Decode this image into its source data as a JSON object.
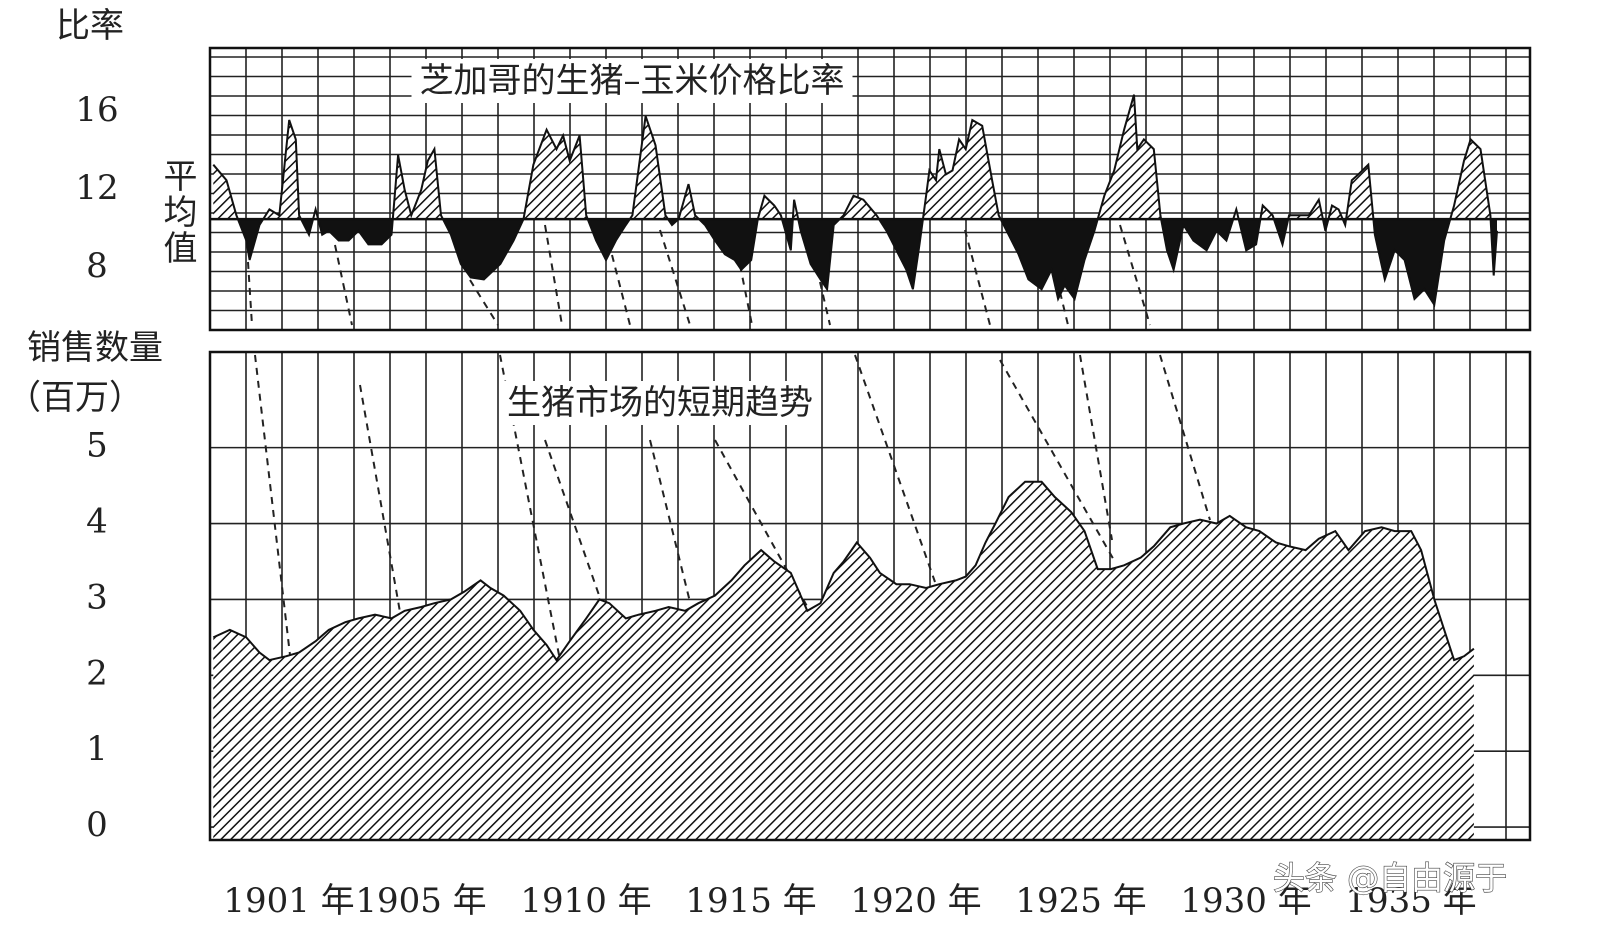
{
  "chart_data": [
    {
      "type": "area",
      "title": "芝加哥的生猪–玉米价格比率",
      "y_label": "比率",
      "baseline": 10.5,
      "baseline_label": "平均值",
      "x": [
        1898.1,
        1898.5,
        1898.8,
        1899.1,
        1899.2,
        1899.5,
        1899.8,
        1900.1,
        1900.4,
        1900.6,
        1900.7,
        1901.0,
        1901.2,
        1901.4,
        1901.6,
        1901.9,
        1902.2,
        1902.5,
        1902.8,
        1903.2,
        1903.5,
        1903.7,
        1903.9,
        1904.1,
        1904.4,
        1904.6,
        1904.8,
        1905.0,
        1905.3,
        1905.6,
        1905.9,
        1906.3,
        1906.8,
        1907.2,
        1907.5,
        1907.8,
        1908.2,
        1908.5,
        1908.7,
        1908.9,
        1909.2,
        1909.4,
        1909.7,
        1910.0,
        1910.3,
        1910.6,
        1910.8,
        1911.2,
        1911.5,
        1911.8,
        1912.0,
        1912.2,
        1912.5,
        1912.7,
        1913.0,
        1913.3,
        1913.6,
        1913.9,
        1914.1,
        1914.4,
        1914.6,
        1914.8,
        1915.1,
        1915.3,
        1915.6,
        1915.7,
        1915.9,
        1916.2,
        1916.5,
        1916.7,
        1916.9,
        1917.2,
        1917.5,
        1917.8,
        1918.2,
        1918.5,
        1918.8,
        1919.1,
        1919.3,
        1919.5,
        1919.7,
        1919.8,
        1920.0,
        1920.1,
        1920.3,
        1920.5,
        1920.7,
        1920.9,
        1921.1,
        1921.4,
        1921.7,
        1921.9,
        1922.2,
        1922.5,
        1922.8,
        1923.2,
        1923.5,
        1923.7,
        1923.9,
        1924.2,
        1924.5,
        1924.8,
        1925.1,
        1925.4,
        1925.7,
        1926.0,
        1926.1,
        1926.3,
        1926.6,
        1926.8,
        1927.0,
        1927.2,
        1927.5,
        1927.8,
        1928.2,
        1928.5,
        1928.8,
        1929.1,
        1929.4,
        1929.7,
        1929.9,
        1930.2,
        1930.5,
        1930.7,
        1931.0,
        1931.3,
        1931.6,
        1931.8,
        1932.0,
        1932.2,
        1932.4,
        1932.6,
        1932.8,
        1933.1,
        1933.3,
        1933.6,
        1933.9,
        1934.2,
        1934.5,
        1934.8,
        1935.1,
        1935.4,
        1935.7,
        1936.0,
        1936.2,
        1936.5,
        1936.8,
        1936.9,
        1937.0
      ],
      "values": [
        13.3,
        12.5,
        10.7,
        9.4,
        8.4,
        10.2,
        11.0,
        10.7,
        15.6,
        14.6,
        10.7,
        9.7,
        11.0,
        9.7,
        9.9,
        9.4,
        9.4,
        9.9,
        9.2,
        9.2,
        9.7,
        13.8,
        12.0,
        10.7,
        12.0,
        13.5,
        14.1,
        10.7,
        9.7,
        8.2,
        7.5,
        7.4,
        8.2,
        9.4,
        10.5,
        13.3,
        15.1,
        14.1,
        14.8,
        13.5,
        14.8,
        10.7,
        9.4,
        8.4,
        9.4,
        10.2,
        10.7,
        15.8,
        14.3,
        10.7,
        10.2,
        10.5,
        12.3,
        10.7,
        10.2,
        9.4,
        8.7,
        8.4,
        7.9,
        8.4,
        10.5,
        11.7,
        11.2,
        10.7,
        8.9,
        11.5,
        9.9,
        8.2,
        7.4,
        6.9,
        10.2,
        10.7,
        11.7,
        11.5,
        10.7,
        9.9,
        8.9,
        7.9,
        6.9,
        9.2,
        11.7,
        13.0,
        12.5,
        14.1,
        12.8,
        13.0,
        14.6,
        14.1,
        15.6,
        15.3,
        12.5,
        10.7,
        9.7,
        8.7,
        7.4,
        6.9,
        7.9,
        6.4,
        7.1,
        6.4,
        8.4,
        9.9,
        11.7,
        13.0,
        15.1,
        16.9,
        14.1,
        14.6,
        14.1,
        10.7,
        8.9,
        7.9,
        10.2,
        9.4,
        8.9,
        9.9,
        9.4,
        11.0,
        8.9,
        9.2,
        11.2,
        10.7,
        9.2,
        10.7,
        10.7,
        10.7,
        11.5,
        9.9,
        11.2,
        11.0,
        10.2,
        12.5,
        12.8,
        13.3,
        9.7,
        7.4,
        8.9,
        8.4,
        6.4,
        6.9,
        6.1,
        9.4,
        11.2,
        13.5,
        14.6,
        14.1,
        10.7,
        7.6,
        9.9
      ],
      "color": "#111111",
      "xlim": [
        1898,
        1938
      ],
      "ylim": [
        4.8,
        19.3
      ],
      "yticks": [
        8,
        12,
        16
      ]
    },
    {
      "type": "area",
      "title": "生猪市场的短期趋势",
      "y_label": "销售数量",
      "y_label_unit": "（百万）",
      "x": [
        1898.1,
        1898.6,
        1899.1,
        1899.5,
        1899.8,
        1900.3,
        1900.7,
        1901.2,
        1901.6,
        1902.1,
        1902.5,
        1903.0,
        1903.5,
        1903.9,
        1904.4,
        1904.8,
        1905.3,
        1905.7,
        1906.2,
        1906.5,
        1906.9,
        1907.4,
        1907.8,
        1908.2,
        1908.5,
        1908.9,
        1909.4,
        1909.8,
        1910.1,
        1910.6,
        1911.0,
        1911.5,
        1911.9,
        1912.4,
        1912.8,
        1913.3,
        1913.8,
        1914.2,
        1914.7,
        1915.1,
        1915.6,
        1915.9,
        1916.1,
        1916.5,
        1916.9,
        1917.2,
        1917.6,
        1918.0,
        1918.3,
        1918.8,
        1919.2,
        1919.7,
        1920.1,
        1920.6,
        1920.9,
        1921.2,
        1921.5,
        1921.8,
        1922.2,
        1922.7,
        1923.2,
        1923.6,
        1924.1,
        1924.5,
        1924.9,
        1925.3,
        1925.7,
        1926.2,
        1926.6,
        1927.1,
        1927.5,
        1928.0,
        1928.5,
        1928.9,
        1929.4,
        1929.8,
        1930.3,
        1930.7,
        1931.2,
        1931.6,
        1932.1,
        1932.5,
        1933.0,
        1933.5,
        1933.9,
        1934.4,
        1934.7,
        1935.1,
        1935.4,
        1935.7,
        1936.0,
        1936.3
      ],
      "values": [
        2.5,
        2.6,
        2.5,
        2.3,
        2.2,
        2.25,
        2.3,
        2.45,
        2.6,
        2.7,
        2.75,
        2.8,
        2.75,
        2.85,
        2.9,
        2.95,
        3.0,
        3.1,
        3.25,
        3.15,
        3.05,
        2.85,
        2.6,
        2.4,
        2.2,
        2.45,
        2.75,
        3.0,
        2.95,
        2.75,
        2.8,
        2.85,
        2.9,
        2.85,
        2.95,
        3.05,
        3.25,
        3.45,
        3.65,
        3.5,
        3.35,
        3.05,
        2.85,
        2.95,
        3.35,
        3.5,
        3.75,
        3.55,
        3.35,
        3.2,
        3.2,
        3.15,
        3.2,
        3.25,
        3.3,
        3.45,
        3.75,
        4.0,
        4.35,
        4.55,
        4.55,
        4.35,
        4.15,
        3.9,
        3.4,
        3.4,
        3.45,
        3.55,
        3.7,
        3.95,
        4.0,
        4.05,
        4.0,
        4.1,
        3.95,
        3.9,
        3.75,
        3.7,
        3.65,
        3.8,
        3.9,
        3.65,
        3.9,
        3.95,
        3.9,
        3.9,
        3.65,
        3.0,
        2.6,
        2.2,
        2.25,
        2.35
      ],
      "color": "#111111",
      "xlim": [
        1898,
        1938
      ],
      "ylim": [
        -0.17,
        6.26
      ],
      "yticks": [
        0,
        1,
        2,
        3,
        4,
        5
      ],
      "grid": true,
      "xticks": [
        {
          "value": 1901,
          "label": "1901 年"
        },
        {
          "value": 1905,
          "label": "1905 年"
        },
        {
          "value": 1910,
          "label": "1910 年"
        },
        {
          "value": 1915,
          "label": "1915 年"
        },
        {
          "value": 1920,
          "label": "1920 年"
        },
        {
          "value": 1925,
          "label": "1925 年"
        },
        {
          "value": 1930,
          "label": "1930 年"
        },
        {
          "value": 1935,
          "label": "1935 年"
        }
      ]
    }
  ],
  "watermark": "头条 @自由源于"
}
